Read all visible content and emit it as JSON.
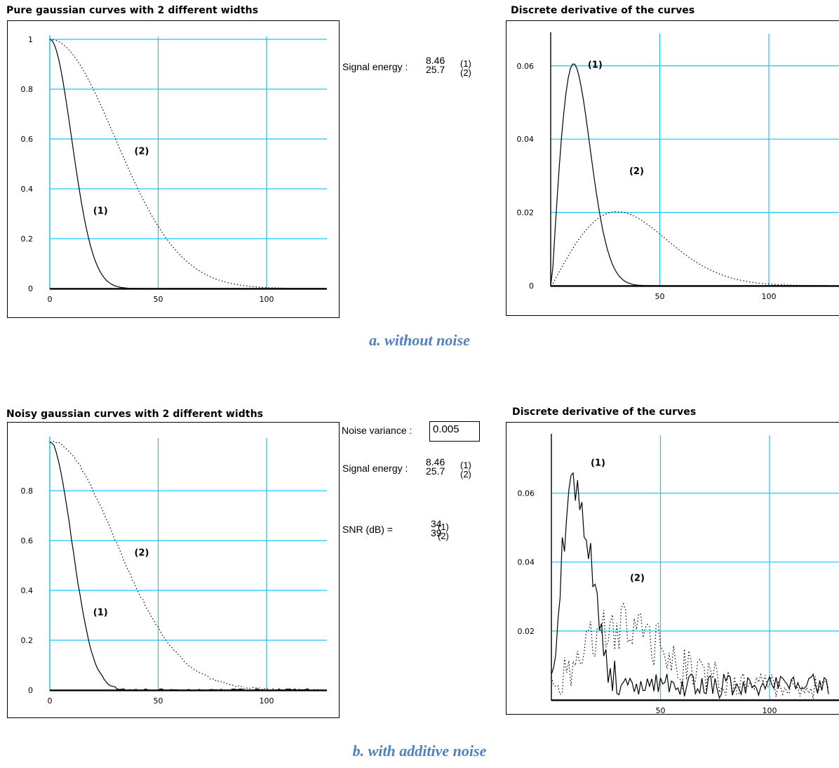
{
  "colors": {
    "grid": "#19c3f5",
    "curve": "#000000",
    "caption": "#4f81bd"
  },
  "panels": {
    "top_left_title": "Pure gaussian curves with 2 different widths",
    "top_right_title": "Discrete derivative of the curves",
    "bottom_left_title": "Noisy gaussian curves with 2 different widths",
    "bottom_right_title": "Discrete derivative of the curves"
  },
  "captions": {
    "top": "a. without noise",
    "bottom": "b. with additive noise"
  },
  "info_top": {
    "signal_energy_label": "Signal energy :",
    "energy_1": "8.46",
    "energy_2": "25.7",
    "tag_1": "(1)",
    "tag_2": "(2)"
  },
  "info_bottom": {
    "noise_variance_label": "Noise variance :",
    "noise_variance_value": "0.005",
    "signal_energy_label": "Signal energy :",
    "energy_1": "8.46",
    "energy_2": "25.7",
    "snr_label": "SNR (dB) =",
    "snr_1": "34",
    "snr_2": "39",
    "tag_1": "(1)",
    "tag_2": "(2)"
  },
  "chart_data": [
    {
      "id": "pure",
      "type": "line",
      "title": "Pure gaussian curves with 2 different widths",
      "xlim": [
        0,
        127
      ],
      "ylim": [
        0,
        1
      ],
      "xticks": [
        0,
        50,
        100
      ],
      "yticks": [
        0,
        0.2,
        0.4,
        0.6,
        0.8,
        1
      ],
      "ytick_labels": [
        "0",
        "0.2",
        "0.4",
        "0.6",
        "0.8",
        "1"
      ],
      "series": [
        {
          "name": "(1)",
          "style": "solid",
          "gaussian_sigma": 10,
          "noise": 0
        },
        {
          "name": "(2)",
          "style": "dotted",
          "gaussian_sigma": 30,
          "noise": 0
        }
      ],
      "annotations": [
        {
          "text": "(2)",
          "x": 39,
          "y": 0.54
        },
        {
          "text": "(1)",
          "x": 20,
          "y": 0.3
        }
      ]
    },
    {
      "id": "deriv",
      "type": "line",
      "title": "Discrete derivative of the curves",
      "xlim": [
        0,
        127
      ],
      "ylim": [
        0,
        0.068
      ],
      "xticks": [
        50,
        100
      ],
      "yticks": [
        0,
        0.02,
        0.04,
        0.06
      ],
      "ytick_labels": [
        "0",
        "0.02",
        "0.04",
        "0.06"
      ],
      "series": [
        {
          "name": "(1)",
          "style": "solid",
          "gaussian_sigma": 10,
          "noise": 0
        },
        {
          "name": "(2)",
          "style": "dotted",
          "gaussian_sigma": 30,
          "noise": 0
        }
      ],
      "annotations": [
        {
          "text": "(1)",
          "x": 17,
          "y": 0.0595
        },
        {
          "text": "(2)",
          "x": 36,
          "y": 0.0305
        }
      ]
    },
    {
      "id": "noisy",
      "type": "line",
      "title": "Noisy gaussian curves with 2 different widths",
      "xlim": [
        0,
        127
      ],
      "ylim": [
        0,
        1
      ],
      "xticks": [
        0,
        50,
        100
      ],
      "yticks": [
        0,
        0.2,
        0.4,
        0.6,
        0.8
      ],
      "ytick_labels": [
        "0",
        "0.2",
        "0.4",
        "0.6",
        "0.8"
      ],
      "series": [
        {
          "name": "(1)",
          "style": "solid",
          "gaussian_sigma": 10,
          "noise": 0.005
        },
        {
          "name": "(2)",
          "style": "dotted",
          "gaussian_sigma": 30,
          "noise": 0.005
        }
      ],
      "annotations": [
        {
          "text": "(2)",
          "x": 39,
          "y": 0.54
        },
        {
          "text": "(1)",
          "x": 20,
          "y": 0.3
        }
      ]
    },
    {
      "id": "noisyderiv",
      "type": "line",
      "title": "Discrete derivative of the curves",
      "xlim": [
        0,
        127
      ],
      "ylim": [
        0,
        0.076
      ],
      "xticks": [
        50,
        100
      ],
      "yticks": [
        0.02,
        0.04,
        0.06
      ],
      "ytick_labels": [
        "0.02",
        "0.04",
        "0.06"
      ],
      "series": [
        {
          "name": "(1)",
          "style": "solid",
          "gaussian_sigma": 10,
          "noise": 0.006
        },
        {
          "name": "(2)",
          "style": "dotted",
          "gaussian_sigma": 30,
          "noise": 0.006
        }
      ],
      "annotations": [
        {
          "text": "(1)",
          "x": 18,
          "y": 0.068
        },
        {
          "text": "(2)",
          "x": 36,
          "y": 0.0345
        }
      ]
    }
  ]
}
